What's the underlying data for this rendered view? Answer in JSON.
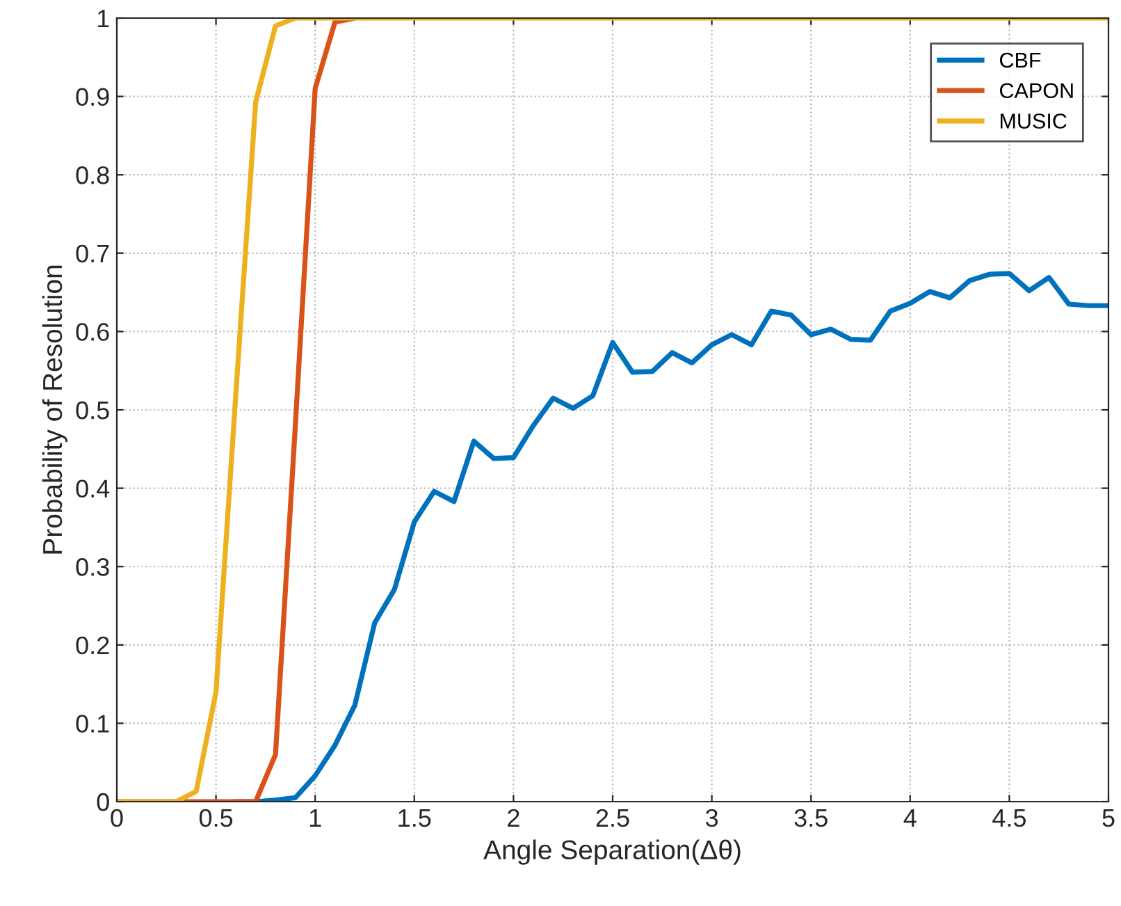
{
  "chart_data": {
    "type": "line",
    "xlabel": "Angle Separation(Δθ)",
    "ylabel": "Probability of Resolution",
    "x": [
      0,
      0.1,
      0.2,
      0.3,
      0.4,
      0.5,
      0.6,
      0.7,
      0.8,
      0.9,
      1,
      1.1,
      1.2,
      1.3,
      1.4,
      1.5,
      1.6,
      1.7,
      1.8,
      1.9,
      2,
      2.1,
      2.2,
      2.3,
      2.4,
      2.5,
      2.6,
      2.7,
      2.8,
      2.9,
      3,
      3.1,
      3.2,
      3.3,
      3.4,
      3.5,
      3.6,
      3.7,
      3.8,
      3.9,
      4,
      4.1,
      4.2,
      4.3,
      4.4,
      4.5,
      4.6,
      4.7,
      4.8,
      4.9,
      5
    ],
    "series": [
      {
        "name": "CBF",
        "color": "#0072bd",
        "values": [
          null,
          null,
          null,
          null,
          null,
          null,
          0,
          0,
          0.002,
          0.005,
          0.033,
          0.072,
          0.123,
          0.228,
          0.271,
          0.357,
          0.396,
          0.383,
          0.46,
          0.438,
          0.439,
          0.48,
          0.515,
          0.502,
          0.518,
          0.586,
          0.548,
          0.549,
          0.573,
          0.56,
          0.583,
          0.596,
          0.583,
          0.626,
          0.621,
          0.596,
          0.603,
          0.59,
          0.589,
          0.626,
          0.636,
          0.651,
          0.643,
          0.665,
          0.673,
          0.674,
          0.652,
          0.669,
          0.635,
          0.633,
          0.633
        ]
      },
      {
        "name": "CAPON",
        "color": "#d95319",
        "values": [
          0,
          0,
          0,
          0,
          0,
          0,
          0,
          0,
          0.06,
          0.48,
          0.91,
          0.995,
          1,
          null,
          null,
          null,
          null,
          null,
          null,
          null,
          null,
          null,
          null,
          null,
          null,
          null,
          null,
          null,
          null,
          null,
          null,
          null,
          null,
          null,
          null,
          null,
          null,
          null,
          null,
          null,
          null,
          null,
          null,
          null,
          null,
          null,
          null,
          null,
          null,
          null,
          null
        ]
      },
      {
        "name": "MUSIC",
        "color": "#edb120",
        "values": [
          0,
          0,
          0,
          0,
          0.013,
          0.14,
          0.52,
          0.893,
          0.99,
          1,
          1,
          1,
          1,
          1,
          1,
          1,
          1,
          1,
          1,
          1,
          1,
          1,
          1,
          1,
          1,
          1,
          1,
          1,
          1,
          1,
          1,
          1,
          1,
          1,
          1,
          1,
          1,
          1,
          1,
          1,
          1,
          1,
          1,
          1,
          1,
          1,
          1,
          1,
          1,
          1,
          1
        ]
      }
    ],
    "xlim": [
      0,
      5
    ],
    "xticks": [
      0,
      0.5,
      1,
      1.5,
      2,
      2.5,
      3,
      3.5,
      4,
      4.5,
      5
    ],
    "ylim": [
      0,
      1
    ],
    "yticks": [
      0,
      0.1,
      0.2,
      0.3,
      0.4,
      0.5,
      0.6,
      0.7,
      0.8,
      0.9,
      1
    ],
    "grid": true,
    "legend": "top right",
    "marker": "none",
    "line_style": "solid"
  }
}
